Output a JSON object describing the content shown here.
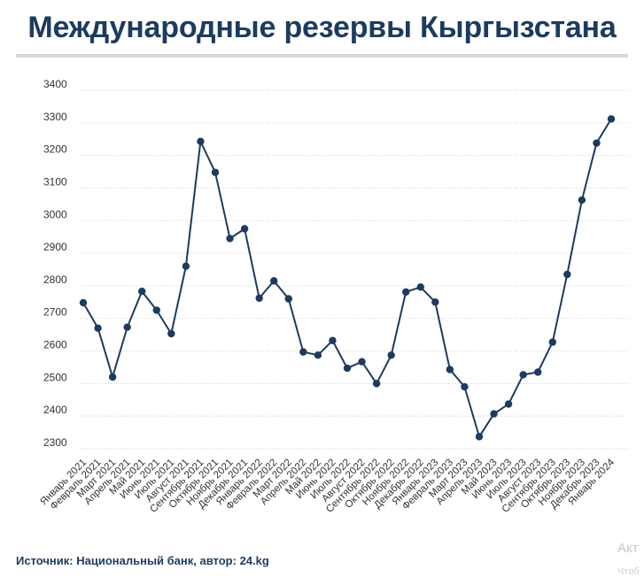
{
  "title": "Международные резервы Кыргызстана",
  "source": "Источник: Национальный банк, автор: 24.kg",
  "watermark": {
    "line1": "Акт",
    "line2": "Чтоб"
  },
  "colors": {
    "line": "#1d3b5e",
    "marker": "#1d3b5e",
    "grid": "#d9d9d9",
    "axis_text": "#333333"
  },
  "chart_data": {
    "type": "line",
    "grid": true,
    "legend": "none",
    "ylim": [
      2300,
      3400
    ],
    "yticks": [
      2300,
      2400,
      2500,
      2600,
      2700,
      2800,
      2900,
      3000,
      3100,
      3200,
      3300,
      3400
    ],
    "categories": [
      "Январь 2021",
      "Февраль 2021",
      "Март 2021",
      "Апрель 2021",
      "Май 2021",
      "Июнь 2021",
      "Июль 2021",
      "Август 2021",
      "Сентябрь 2021",
      "Октябрь 2021",
      "Ноябрь 2021",
      "Декабрь 2021",
      "Январь 2022",
      "Февраль 2022",
      "Март 2022",
      "Апрель 2022",
      "Май 2022",
      "Июнь 2022",
      "Июль 2022",
      "Август 2022",
      "Сентябрь 2022",
      "Октябрь 2022",
      "Ноябрь 2022",
      "Декабрь 2022",
      "Январь 2023",
      "Февраль 2023",
      "Март 2023",
      "Апрель 2023",
      "Май 2023",
      "Июнь 2023",
      "Июль 2023",
      "Август 2023",
      "Сентябрь 2023",
      "Октябрь 2023",
      "Ноябрь 2023",
      "Декабрь 2023",
      "Январь 2024"
    ],
    "series": [
      {
        "values": [
          2748,
          2670,
          2520,
          2673,
          2783,
          2725,
          2653,
          2860,
          3243,
          3148,
          2945,
          2975,
          2762,
          2815,
          2760,
          2597,
          2587,
          2632,
          2547,
          2567,
          2500,
          2587,
          2781,
          2796,
          2750,
          2543,
          2490,
          2337,
          2407,
          2437,
          2527,
          2535,
          2627,
          2835,
          3063,
          3238,
          3312
        ]
      }
    ]
  }
}
